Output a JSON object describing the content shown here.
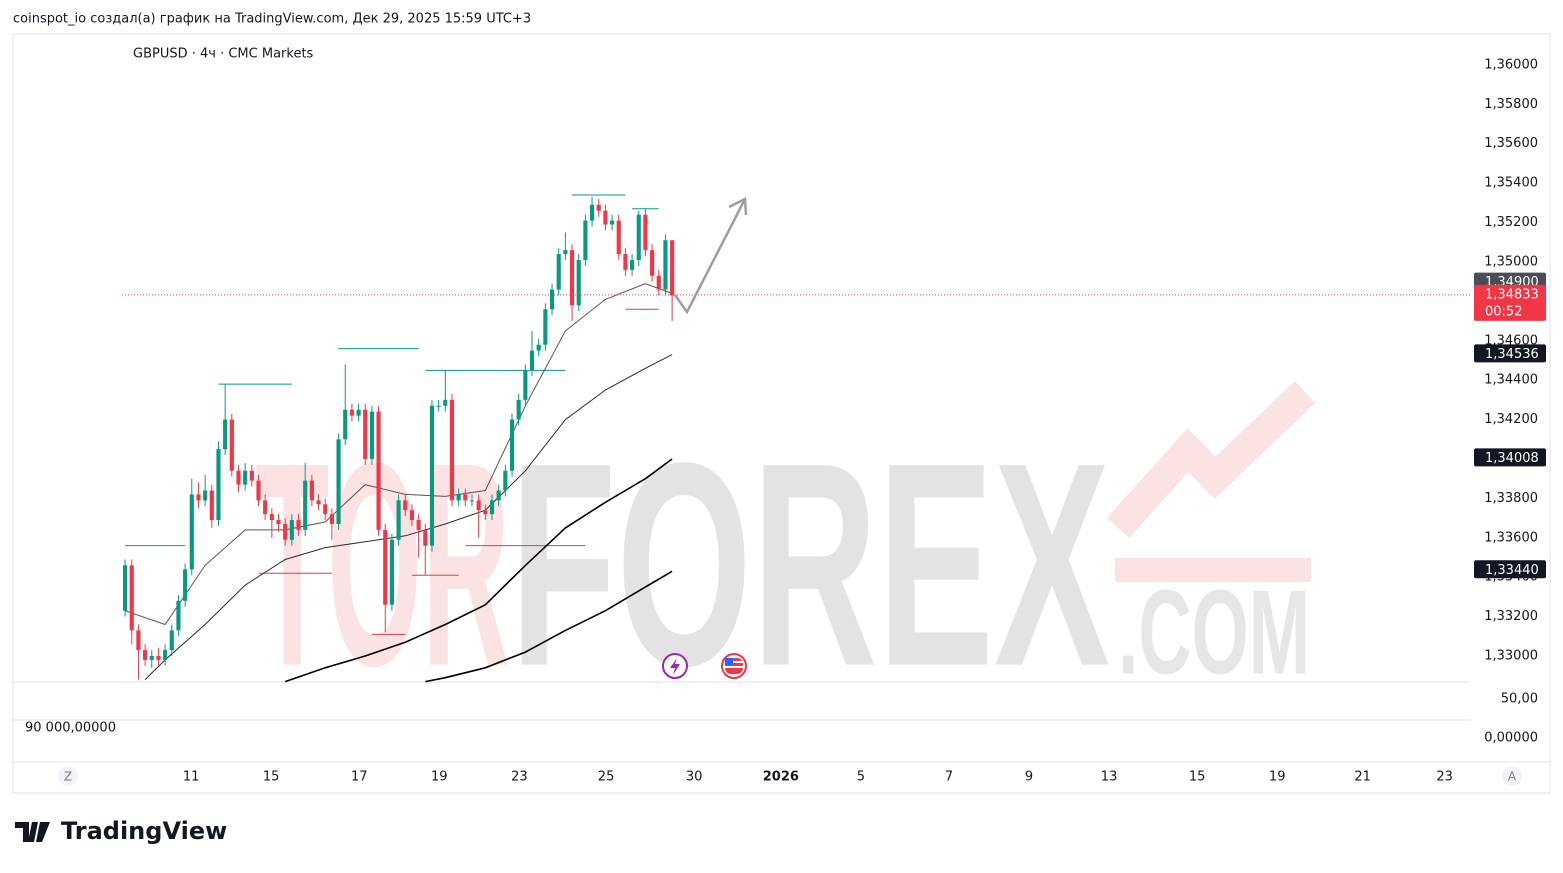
{
  "header": "coinspot_io создал(а) график на TradingView.com, Дек 29, 2025 15:59 UTC+3",
  "footer_logo": "TradingView",
  "chart_data": {
    "type": "candlestick",
    "title": "GBPUSD · 4ч · CMC Markets",
    "up_color": "#089981",
    "down_color": "#f23645",
    "open": [
      1.3323,
      1.3346,
      1.3313,
      1.3303,
      1.3298,
      1.33,
      1.3298,
      1.3303,
      1.3313,
      1.3328,
      1.3344,
      1.3382,
      1.3379,
      1.3384,
      1.3369,
      1.3405,
      1.342,
      1.3394,
      1.3387,
      1.3394,
      1.3389,
      1.3379,
      1.3372,
      1.3369,
      1.3367,
      1.3359,
      1.3369,
      1.3364,
      1.3389,
      1.3379,
      1.3377,
      1.3372,
      1.3367,
      1.341,
      1.3425,
      1.3422,
      1.3425,
      1.34,
      1.3424,
      1.3364,
      1.3326,
      1.3359,
      1.3379,
      1.3374,
      1.3369,
      1.3364,
      1.3356,
      1.3427,
      1.3427,
      1.343,
      1.3379,
      1.3382,
      1.3379,
      1.3379,
      1.3374,
      1.3372,
      1.3379,
      1.3384,
      1.3394,
      1.342,
      1.343,
      1.3445,
      1.3455,
      1.3458,
      1.3476,
      1.3486,
      1.3504,
      1.3506,
      1.3478,
      1.3501,
      1.3521,
      1.3529,
      1.3526,
      1.3519,
      1.3521,
      1.3504,
      1.3496,
      1.3501,
      1.3524,
      1.3506,
      1.3493,
      1.3486,
      1.3511
    ],
    "high": [
      1.3349,
      1.3349,
      1.3316,
      1.3306,
      1.3303,
      1.3304,
      1.3306,
      1.3316,
      1.3331,
      1.3347,
      1.339,
      1.3388,
      1.3392,
      1.3387,
      1.3409,
      1.3438,
      1.3423,
      1.3397,
      1.3398,
      1.3397,
      1.3392,
      1.3382,
      1.3375,
      1.3372,
      1.337,
      1.3372,
      1.3372,
      1.3398,
      1.3392,
      1.3382,
      1.338,
      1.3375,
      1.3413,
      1.3448,
      1.3428,
      1.3428,
      1.3428,
      1.3427,
      1.3427,
      1.3367,
      1.3362,
      1.3382,
      1.3382,
      1.3377,
      1.3372,
      1.3367,
      1.343,
      1.343,
      1.3445,
      1.3433,
      1.3385,
      1.3385,
      1.3382,
      1.3382,
      1.3377,
      1.3382,
      1.3387,
      1.3397,
      1.3423,
      1.3433,
      1.3448,
      1.3465,
      1.3461,
      1.3479,
      1.3489,
      1.3507,
      1.3515,
      1.3509,
      1.3504,
      1.3524,
      1.3533,
      1.3532,
      1.3529,
      1.3524,
      1.3524,
      1.3507,
      1.3504,
      1.3526,
      1.3527,
      1.3509,
      1.3496,
      1.3514,
      1.3511
    ],
    "low": [
      1.332,
      1.3306,
      1.3288,
      1.3295,
      1.3294,
      1.3295,
      1.3295,
      1.33,
      1.331,
      1.3325,
      1.3341,
      1.3375,
      1.3376,
      1.3365,
      1.3366,
      1.3402,
      1.3391,
      1.3383,
      1.3384,
      1.3386,
      1.3376,
      1.3369,
      1.336,
      1.3363,
      1.3356,
      1.3356,
      1.3361,
      1.3361,
      1.3376,
      1.3374,
      1.3369,
      1.3359,
      1.3364,
      1.3407,
      1.3419,
      1.3419,
      1.3397,
      1.3397,
      1.3361,
      1.3312,
      1.3323,
      1.3356,
      1.3371,
      1.3366,
      1.335,
      1.3341,
      1.3353,
      1.3424,
      1.3424,
      1.3376,
      1.3376,
      1.3376,
      1.3376,
      1.336,
      1.3369,
      1.3369,
      1.3376,
      1.3381,
      1.3391,
      1.3417,
      1.3427,
      1.3442,
      1.3452,
      1.3455,
      1.3473,
      1.3483,
      1.3501,
      1.347,
      1.3475,
      1.3498,
      1.3518,
      1.3523,
      1.3516,
      1.3516,
      1.3501,
      1.3493,
      1.3493,
      1.3498,
      1.3503,
      1.349,
      1.3483,
      1.3483,
      1.347
    ],
    "close": [
      1.3346,
      1.3313,
      1.3303,
      1.3298,
      1.33,
      1.3298,
      1.3303,
      1.3313,
      1.3328,
      1.3344,
      1.3382,
      1.3379,
      1.3384,
      1.3369,
      1.3405,
      1.342,
      1.3394,
      1.3387,
      1.3394,
      1.3389,
      1.3379,
      1.3372,
      1.3369,
      1.3367,
      1.3359,
      1.3369,
      1.3364,
      1.3389,
      1.3379,
      1.3377,
      1.3372,
      1.3367,
      1.341,
      1.3425,
      1.3422,
      1.3425,
      1.34,
      1.3424,
      1.3364,
      1.3326,
      1.3359,
      1.3379,
      1.3374,
      1.3369,
      1.3364,
      1.3356,
      1.3427,
      1.3427,
      1.343,
      1.3379,
      1.3382,
      1.3379,
      1.3379,
      1.3374,
      1.3372,
      1.3379,
      1.3384,
      1.3394,
      1.342,
      1.343,
      1.3445,
      1.3455,
      1.3458,
      1.3476,
      1.3486,
      1.3504,
      1.3506,
      1.3478,
      1.3501,
      1.3521,
      1.3529,
      1.3526,
      1.3519,
      1.3521,
      1.3504,
      1.3496,
      1.3501,
      1.3524,
      1.3506,
      1.3493,
      1.3486,
      1.3511,
      1.3483
    ],
    "overlays": [
      {
        "color": "#555555",
        "width": 1,
        "x": [
          0,
          6,
          12,
          18,
          24,
          30,
          36,
          42,
          48,
          54,
          60,
          66,
          72,
          78,
          82
        ],
        "values": [
          1.3323,
          1.3316,
          1.3346,
          1.3364,
          1.3364,
          1.3368,
          1.3387,
          1.3382,
          1.3381,
          1.3384,
          1.3427,
          1.3465,
          1.3481,
          1.3489,
          1.3484
        ]
      },
      {
        "color": "#2a2a2a",
        "width": 1,
        "x": [
          3,
          6,
          12,
          18,
          24,
          30,
          36,
          42,
          48,
          54,
          60,
          66,
          72,
          78,
          82
        ],
        "values": [
          1.3288,
          1.3298,
          1.3316,
          1.3336,
          1.3349,
          1.3355,
          1.3358,
          1.3361,
          1.3367,
          1.3374,
          1.3394,
          1.342,
          1.3435,
          1.3446,
          1.3453
        ]
      },
      {
        "color": "#000000",
        "width": 1.6,
        "x": [
          24,
          30,
          36,
          42,
          48,
          54,
          60,
          66,
          72,
          78,
          82
        ],
        "values": [
          1.3287,
          1.3294,
          1.33,
          1.3307,
          1.3316,
          1.3326,
          1.3346,
          1.3365,
          1.3378,
          1.339,
          1.34
        ]
      },
      {
        "color": "#000000",
        "width": 1.6,
        "x": [
          45,
          48,
          54,
          60,
          66,
          72,
          78,
          82
        ],
        "values": [
          1.3287,
          1.3289,
          1.3294,
          1.3302,
          1.3313,
          1.3323,
          1.3335,
          1.3343
        ]
      }
    ],
    "levels": [
      {
        "value": 1.3356,
        "x": [
          0,
          9
        ],
        "color": "#089981"
      },
      {
        "value": 1.3438,
        "x": [
          14,
          25
        ],
        "color": "#089981"
      },
      {
        "value": 1.3456,
        "x": [
          32,
          44
        ],
        "color": "#089981"
      },
      {
        "value": 1.3445,
        "x": [
          45,
          66
        ],
        "color": "#089981"
      },
      {
        "value": 1.3534,
        "x": [
          67,
          75
        ],
        "color": "#089981"
      },
      {
        "value": 1.3527,
        "x": [
          76,
          80
        ],
        "color": "#089981"
      },
      {
        "value": 1.3342,
        "x": [
          20,
          31
        ],
        "color": "#f23645"
      },
      {
        "value": 1.3311,
        "x": [
          37,
          42
        ],
        "color": "#f23645"
      },
      {
        "value": 1.3341,
        "x": [
          43,
          50
        ],
        "color": "#f23645"
      },
      {
        "value": 1.3356,
        "x": [
          51,
          69
        ],
        "color": "#f23645"
      },
      {
        "value": 1.3476,
        "x": [
          75,
          80
        ],
        "color": "#f23645"
      }
    ],
    "last_price": {
      "value": 1.34833,
      "label": "1,34833",
      "countdown": "00:52",
      "color": "#f23645"
    },
    "price_tags": [
      {
        "value": 1.349,
        "label": "1,34900",
        "color": "#4a4d57"
      },
      {
        "value": 1.34536,
        "label": "1,34536",
        "color": "#131722"
      },
      {
        "value": 1.34008,
        "label": "1,34008",
        "color": "#131722"
      },
      {
        "value": 1.3344,
        "label": "1,33440",
        "color": "#131722"
      }
    ],
    "xlim": [
      -16.8,
      201.6
    ],
    "xticks": [
      {
        "value": 9.9,
        "label": "11"
      },
      {
        "value": 21.9,
        "label": "15"
      },
      {
        "value": 35.1,
        "label": "17"
      },
      {
        "value": 47.1,
        "label": "19"
      },
      {
        "value": 59.1,
        "label": "23"
      },
      {
        "value": 72.1,
        "label": "25"
      },
      {
        "value": 85.3,
        "label": "30"
      },
      {
        "value": 98.3,
        "label": "2026"
      },
      {
        "value": 110.3,
        "label": "5"
      },
      {
        "value": 123.5,
        "label": "7"
      },
      {
        "value": 135.5,
        "label": "9"
      },
      {
        "value": 147.5,
        "label": "13"
      },
      {
        "value": 160.7,
        "label": "15"
      },
      {
        "value": 172.7,
        "label": "19"
      },
      {
        "value": 185.5,
        "label": "21"
      },
      {
        "value": 197.8,
        "label": "23"
      }
    ],
    "ylim": [
      1.32868,
      1.36157
    ],
    "yticks": [
      {
        "value": 1.33,
        "label": "1,33000"
      },
      {
        "value": 1.332,
        "label": "1,33200"
      },
      {
        "value": 1.334,
        "label": "1,33400"
      },
      {
        "value": 1.336,
        "label": "1,33600"
      },
      {
        "value": 1.338,
        "label": "1,33800"
      },
      {
        "value": 1.34,
        "label": "1,34000"
      },
      {
        "value": 1.342,
        "label": "1,34200"
      },
      {
        "value": 1.344,
        "label": "1,34400"
      },
      {
        "value": 1.346,
        "label": "1,34600"
      },
      {
        "value": 1.348,
        "label": "1,34800"
      },
      {
        "value": 1.35,
        "label": "1,35000"
      },
      {
        "value": 1.352,
        "label": "1,35200"
      },
      {
        "value": 1.354,
        "label": "1,35400"
      },
      {
        "value": 1.356,
        "label": "1,35600"
      },
      {
        "value": 1.358,
        "label": "1,35800"
      },
      {
        "value": 1.36,
        "label": "1,36000"
      }
    ],
    "grid": false,
    "watermark": [
      "TOR",
      "FOREX",
      ".COM"
    ],
    "lower_pane": {
      "labels": [
        "50,00",
        "0,00000"
      ],
      "volume_label": "90 000,00000"
    },
    "scale_buttons": [
      "Z",
      "A"
    ]
  }
}
